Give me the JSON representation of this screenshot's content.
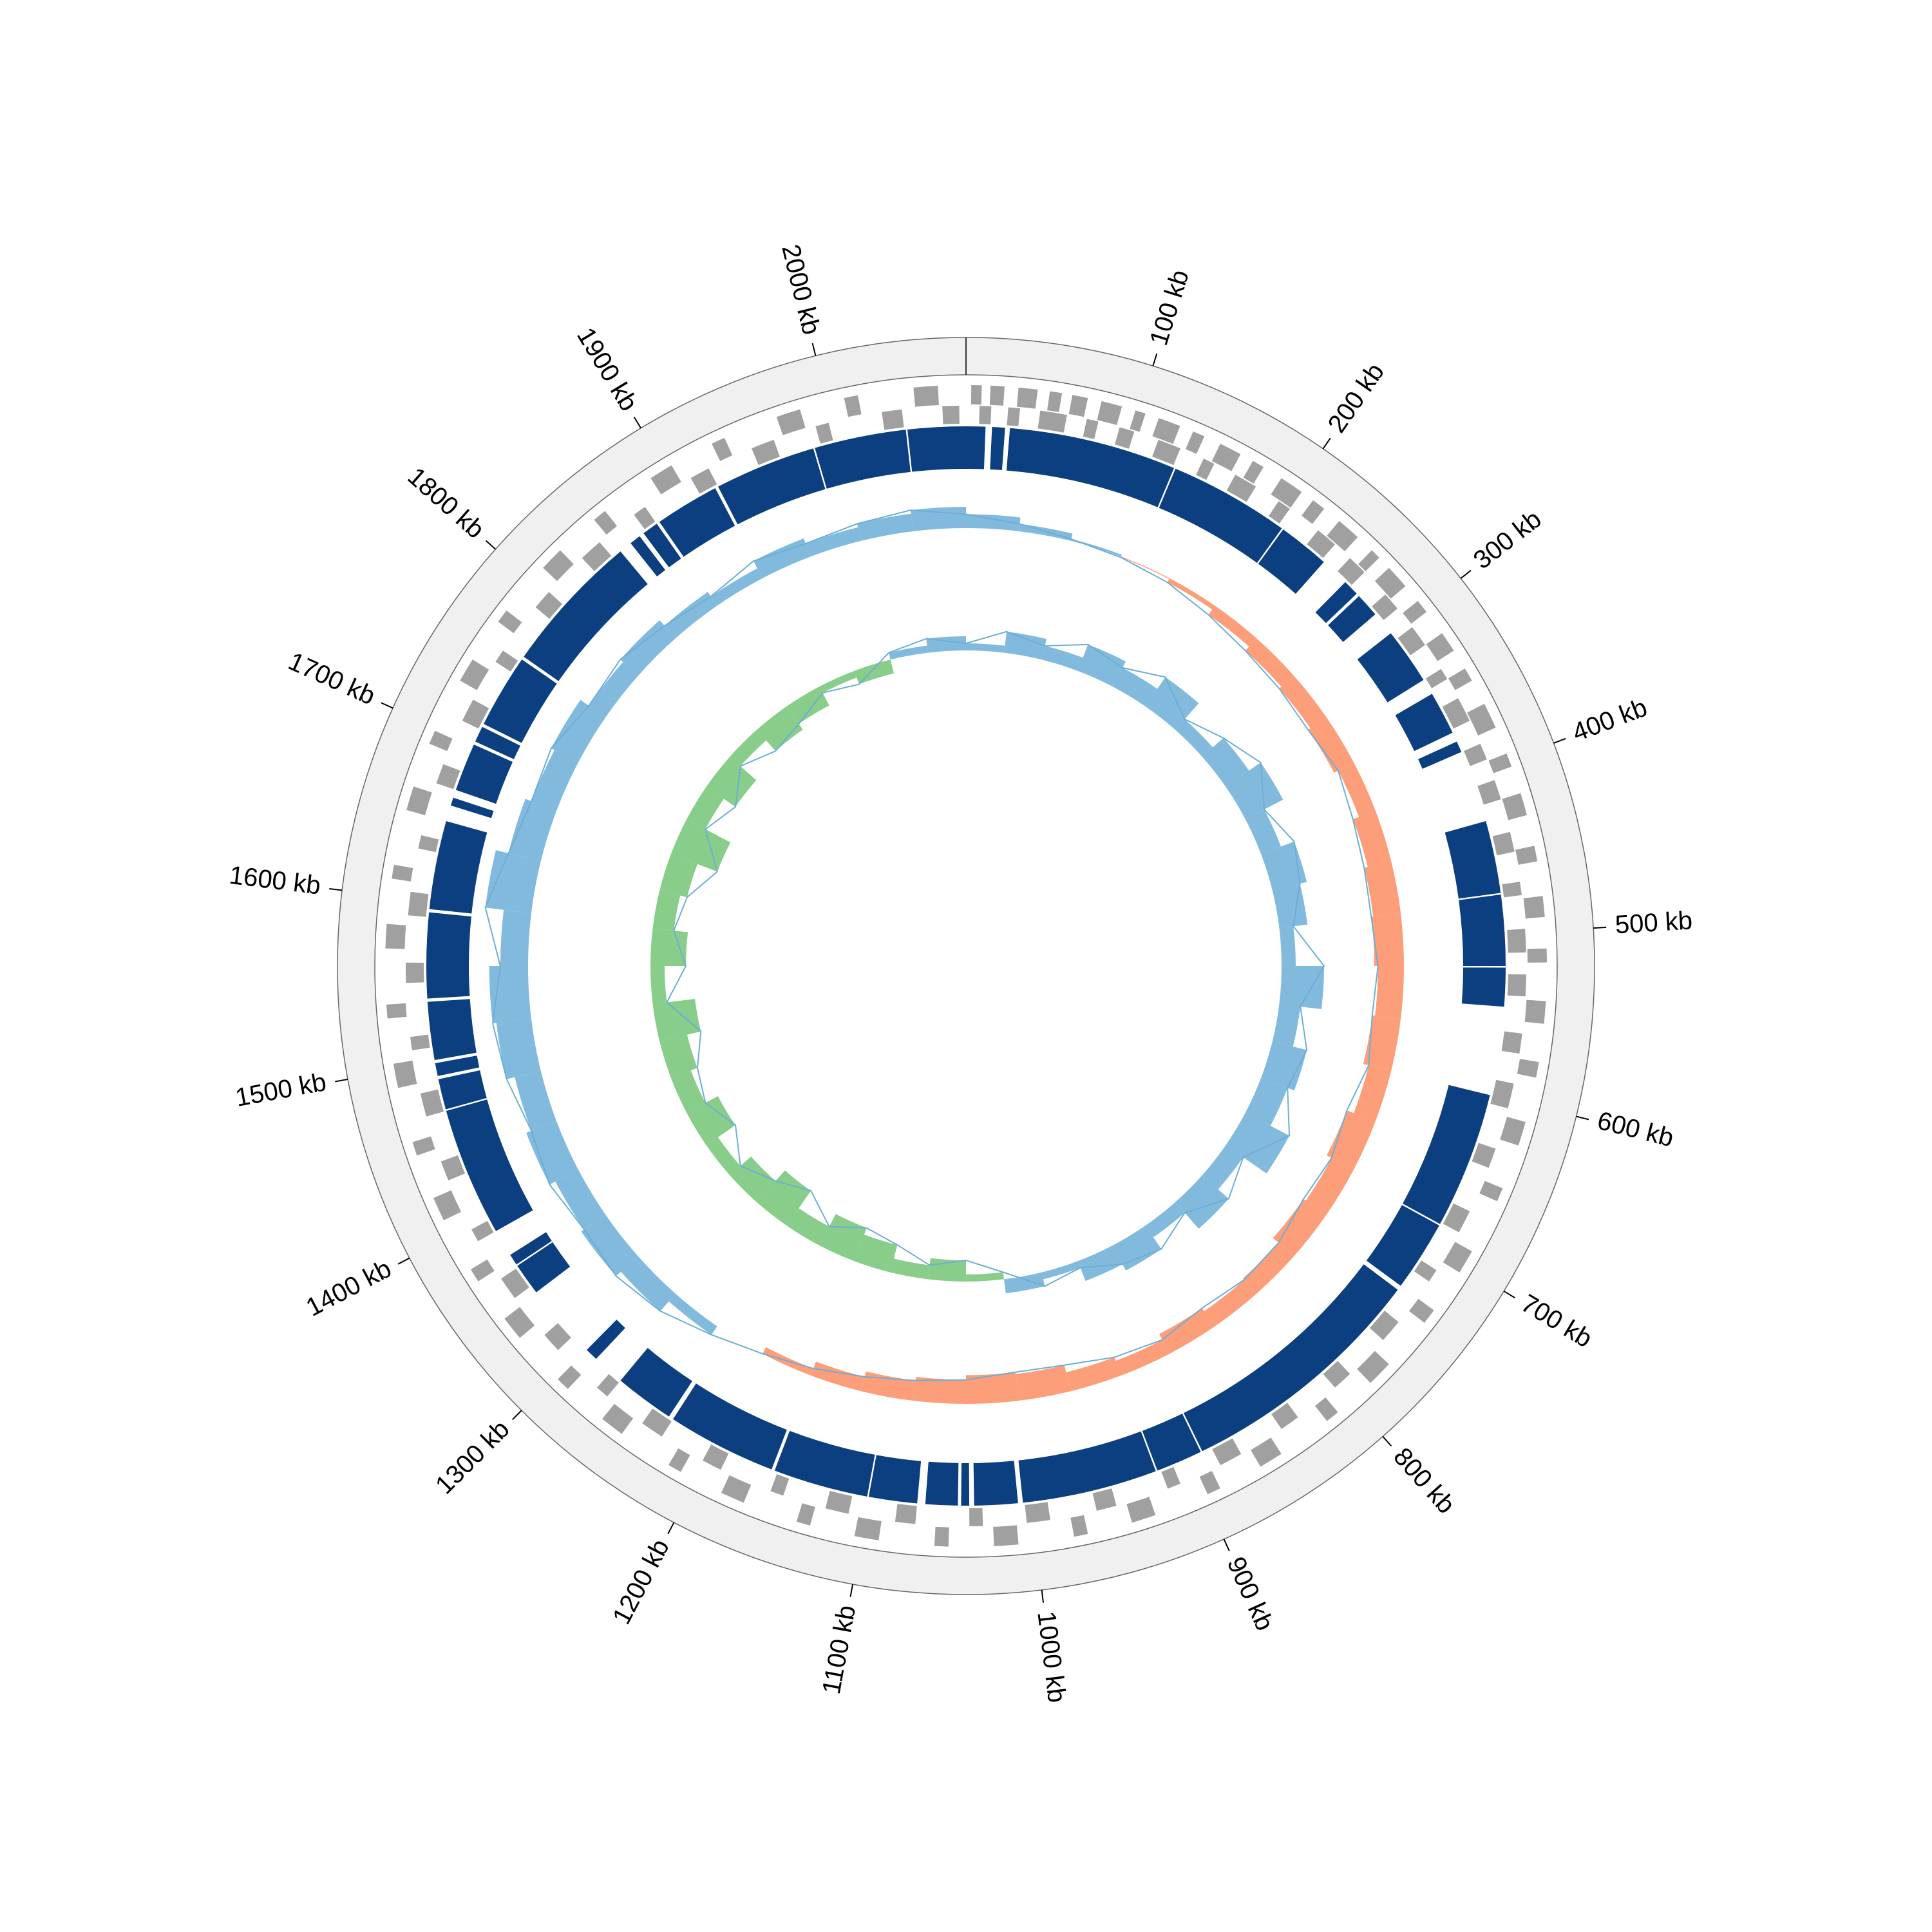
{
  "chart_data": {
    "type": "circular",
    "xlim": [
      0,
      2080
    ],
    "xticks": [
      {
        "value": 100,
        "label": "100 kb"
      },
      {
        "value": 200,
        "label": "200 kb"
      },
      {
        "value": 300,
        "label": "300 kb"
      },
      {
        "value": 400,
        "label": "400 kb"
      },
      {
        "value": 500,
        "label": "500 kb"
      },
      {
        "value": 600,
        "label": "600 kb"
      },
      {
        "value": 700,
        "label": "700 kb"
      },
      {
        "value": 800,
        "label": "800 kb"
      },
      {
        "value": 900,
        "label": "900 kb"
      },
      {
        "value": 1000,
        "label": "1000 kb"
      },
      {
        "value": 1100,
        "label": "1100 kb"
      },
      {
        "value": 1200,
        "label": "1200 kb"
      },
      {
        "value": 1300,
        "label": "1300 kb"
      },
      {
        "value": 1400,
        "label": "1400 kb"
      },
      {
        "value": 1500,
        "label": "1500 kb"
      },
      {
        "value": 1600,
        "label": "1600 kb"
      },
      {
        "value": 1700,
        "label": "1700 kb"
      },
      {
        "value": 1800,
        "label": "1800 kb"
      },
      {
        "value": 1900,
        "label": "1900 kb"
      },
      {
        "value": 2000,
        "label": "2000 kb"
      }
    ],
    "features": {
      "color": "#a0a0a0",
      "plus": [
        [
          3,
          9
        ],
        [
          14,
          22
        ],
        [
          30,
          41
        ],
        [
          48,
          55
        ],
        [
          61,
          70
        ],
        [
          78,
          90
        ],
        [
          98,
          104
        ],
        [
          112,
          125
        ],
        [
          133,
          140
        ],
        [
          150,
          163
        ],
        [
          171,
          178
        ],
        [
          190,
          204
        ],
        [
          212,
          220
        ],
        [
          231,
          245
        ],
        [
          256,
          262
        ],
        [
          270,
          284
        ],
        [
          295,
          303
        ],
        [
          318,
          330
        ],
        [
          342,
          350
        ],
        [
          365,
          380
        ],
        [
          396,
          404
        ],
        [
          420,
          433
        ],
        [
          451,
          460
        ],
        [
          480,
          492
        ],
        [
          510,
          518
        ],
        [
          540,
          553
        ],
        [
          575,
          584
        ],
        [
          610,
          624
        ],
        [
          650,
          658
        ],
        [
          690,
          704
        ],
        [
          730,
          739
        ],
        [
          770,
          785
        ],
        [
          810,
          818
        ],
        [
          850,
          864
        ],
        [
          890,
          898
        ],
        [
          930,
          944
        ],
        [
          970,
          978
        ],
        [
          1010,
          1024
        ],
        [
          1050,
          1058
        ],
        [
          1090,
          1104
        ],
        [
          1130,
          1138
        ],
        [
          1170,
          1184
        ],
        [
          1210,
          1218
        ],
        [
          1250,
          1264
        ],
        [
          1290,
          1298
        ],
        [
          1330,
          1344
        ],
        [
          1370,
          1378
        ],
        [
          1410,
          1424
        ],
        [
          1450,
          1458
        ],
        [
          1490,
          1504
        ],
        [
          1530,
          1538
        ],
        [
          1570,
          1584
        ],
        [
          1610,
          1618
        ],
        [
          1650,
          1664
        ],
        [
          1690,
          1698
        ],
        [
          1730,
          1744
        ],
        [
          1770,
          1778
        ],
        [
          1810,
          1824
        ],
        [
          1850,
          1858
        ],
        [
          1890,
          1904
        ],
        [
          1930,
          1938
        ],
        [
          1970,
          1984
        ],
        [
          2010,
          2018
        ],
        [
          2050,
          2064
        ]
      ],
      "minus": [
        [
          8,
          15
        ],
        [
          25,
          32
        ],
        [
          44,
          60
        ],
        [
          72,
          79
        ],
        [
          92,
          101
        ],
        [
          116,
          130
        ],
        [
          145,
          152
        ],
        [
          166,
          180
        ],
        [
          196,
          204
        ],
        [
          225,
          238
        ],
        [
          250,
          262
        ],
        [
          280,
          291
        ],
        [
          305,
          318
        ],
        [
          335,
          342
        ],
        [
          355,
          370
        ],
        [
          385,
          395
        ],
        [
          408,
          420
        ],
        [
          440,
          452
        ],
        [
          470,
          478
        ],
        [
          498,
          512
        ],
        [
          525,
          538
        ],
        [
          560,
          572
        ],
        [
          590,
          605
        ],
        [
          630,
          642
        ],
        [
          670,
          684
        ],
        [
          710,
          718
        ],
        [
          748,
          762
        ],
        [
          790,
          802
        ],
        [
          830,
          842
        ],
        [
          870,
          884
        ],
        [
          910,
          918
        ],
        [
          950,
          962
        ],
        [
          990,
          1004
        ],
        [
          1030,
          1038
        ],
        [
          1070,
          1082
        ],
        [
          1110,
          1124
        ],
        [
          1150,
          1158
        ],
        [
          1190,
          1202
        ],
        [
          1230,
          1244
        ],
        [
          1270,
          1278
        ],
        [
          1310,
          1322
        ],
        [
          1350,
          1364
        ],
        [
          1390,
          1398
        ],
        [
          1430,
          1442
        ],
        [
          1470,
          1484
        ],
        [
          1510,
          1518
        ],
        [
          1550,
          1562
        ],
        [
          1590,
          1604
        ],
        [
          1630,
          1638
        ],
        [
          1670,
          1682
        ],
        [
          1710,
          1724
        ],
        [
          1750,
          1758
        ],
        [
          1790,
          1802
        ],
        [
          1830,
          1844
        ],
        [
          1870,
          1878
        ],
        [
          1910,
          1922
        ],
        [
          1950,
          1964
        ],
        [
          1990,
          1998
        ],
        [
          2030,
          2042
        ],
        [
          2066,
          2076
        ]
      ]
    },
    "regions": {
      "color": "#0b3f80",
      "intervals": [
        [
          0,
          12
        ],
        [
          16,
          24
        ],
        [
          27,
          131
        ],
        [
          132,
          207
        ],
        [
          208,
          240
        ],
        [
          258,
          268
        ],
        [
          270,
          285
        ],
        [
          300,
          335
        ],
        [
          345,
          372
        ],
        [
          378,
          385
        ],
        [
          430,
          475
        ],
        [
          476,
          520
        ],
        [
          521,
          545
        ],
        [
          600,
          685
        ],
        [
          686,
          730
        ],
        [
          733,
          890
        ],
        [
          891,
          920
        ],
        [
          921,
          1005
        ],
        [
          1008,
          1035
        ],
        [
          1038,
          1043
        ],
        [
          1045,
          1065
        ],
        [
          1070,
          1100
        ],
        [
          1101,
          1160
        ],
        [
          1162,
          1230
        ],
        [
          1233,
          1270
        ],
        [
          1290,
          1298
        ],
        [
          1345,
          1365
        ],
        [
          1366,
          1373
        ],
        [
          1390,
          1470
        ],
        [
          1471,
          1490
        ],
        [
          1492,
          1500
        ],
        [
          1502,
          1538
        ],
        [
          1540,
          1593
        ],
        [
          1595,
          1650
        ],
        [
          1660,
          1665
        ],
        [
          1670,
          1700
        ],
        [
          1702,
          1712
        ],
        [
          1714,
          1760
        ],
        [
          1762,
          1850
        ],
        [
          1858,
          1865
        ],
        [
          1868,
          1878
        ],
        [
          1880,
          1920
        ],
        [
          1922,
          1985
        ],
        [
          1986,
          2043
        ],
        [
          2044,
          2080
        ]
      ]
    },
    "x": [
      0,
      40,
      80,
      120,
      160,
      200,
      240,
      280,
      320,
      360,
      400,
      440,
      480,
      520,
      560,
      600,
      640,
      680,
      720,
      760,
      800,
      840,
      880,
      920,
      960,
      1000,
      1040,
      1080,
      1120,
      1160,
      1200,
      1240,
      1280,
      1320,
      1360,
      1400,
      1440,
      1480,
      1520,
      1560,
      1600,
      1640,
      1680,
      1720,
      1760,
      1800,
      1840,
      1880,
      1920,
      1960,
      2000,
      2040
    ],
    "gc_content": {
      "ylim": [
        30,
        46
      ],
      "colors": [
        "#6baed6",
        "#fc8d62"
      ],
      "values": [
        39.5,
        38.8,
        38.2,
        37.9,
        37.5,
        36.8,
        36.2,
        35.9,
        35.6,
        36.1,
        35.4,
        35.0,
        34.8,
        35.2,
        34.9,
        35.5,
        34.7,
        35.3,
        35.0,
        35.8,
        36.0,
        35.6,
        36.3,
        35.9,
        35.1,
        34.9,
        35.4,
        35.8,
        36.4,
        37.2,
        38.0,
        39.1,
        40.5,
        41.2,
        40.8,
        41.5,
        40.9,
        41.8,
        42.2,
        41.0,
        43.0,
        41.6,
        40.9,
        41.3,
        40.2,
        40.6,
        39.8,
        39.2,
        40.1,
        39.5,
        39.9,
        40.3
      ]
    },
    "gc_skew": {
      "ylim": [
        -0.1,
        0.1
      ],
      "colors": [
        "#6baed6",
        "#74c476"
      ],
      "values": [
        0.01,
        0.03,
        0.02,
        0.04,
        0.03,
        0.05,
        0.02,
        0.04,
        0.06,
        0.03,
        0.05,
        0.04,
        0.02,
        0.06,
        0.03,
        0.05,
        0.04,
        0.07,
        0.03,
        0.05,
        0.02,
        0.04,
        0.03,
        0.01,
        0.02,
        -0.01,
        -0.03,
        -0.02,
        -0.04,
        -0.05,
        -0.03,
        -0.06,
        -0.04,
        -0.02,
        -0.05,
        -0.03,
        -0.04,
        -0.06,
        -0.02,
        -0.05,
        -0.03,
        -0.04,
        -0.07,
        -0.03,
        -0.05,
        -0.02,
        -0.04,
        -0.03,
        -0.01,
        -0.02,
        0.01,
        0.02
      ]
    }
  }
}
